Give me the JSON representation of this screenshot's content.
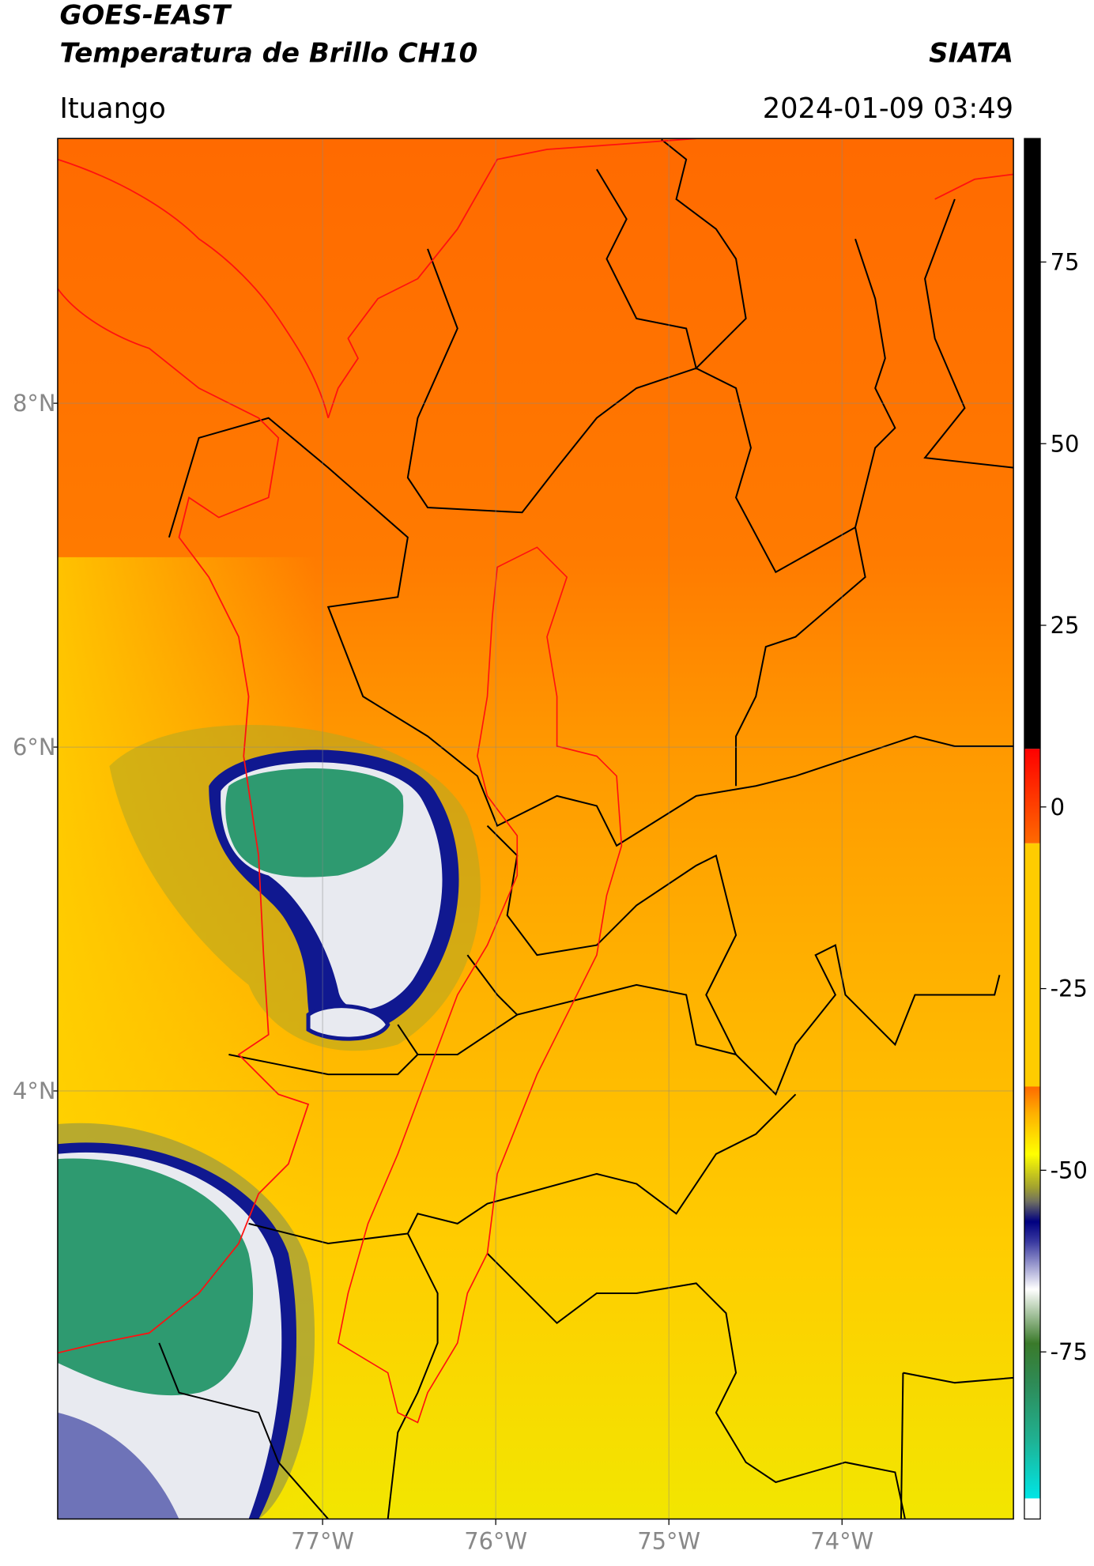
{
  "header": {
    "title": "GOES-EAST",
    "subtitle": "Temperatura de Brillo CH10",
    "source": "SIATA",
    "location": "Ituango",
    "timestamp": "2024-01-09 03:49"
  },
  "map": {
    "lonlim": [
      -78.53,
      -73.01
    ],
    "latlim": [
      1.51,
      9.54
    ],
    "xticks": [
      {
        "value": -77,
        "label": "77°W"
      },
      {
        "value": -76,
        "label": "76°W"
      },
      {
        "value": -75,
        "label": "75°W"
      },
      {
        "value": -74,
        "label": "74°W"
      }
    ],
    "yticks": [
      {
        "value": 4,
        "label": "4°N"
      },
      {
        "value": 6,
        "label": "6°N"
      },
      {
        "value": 8,
        "label": "8°N"
      }
    ],
    "grid": true
  },
  "colorbar": {
    "lim": [
      -98,
      92
    ],
    "ticks": [
      -75,
      -50,
      -25,
      0,
      25,
      50,
      75
    ]
  }
}
